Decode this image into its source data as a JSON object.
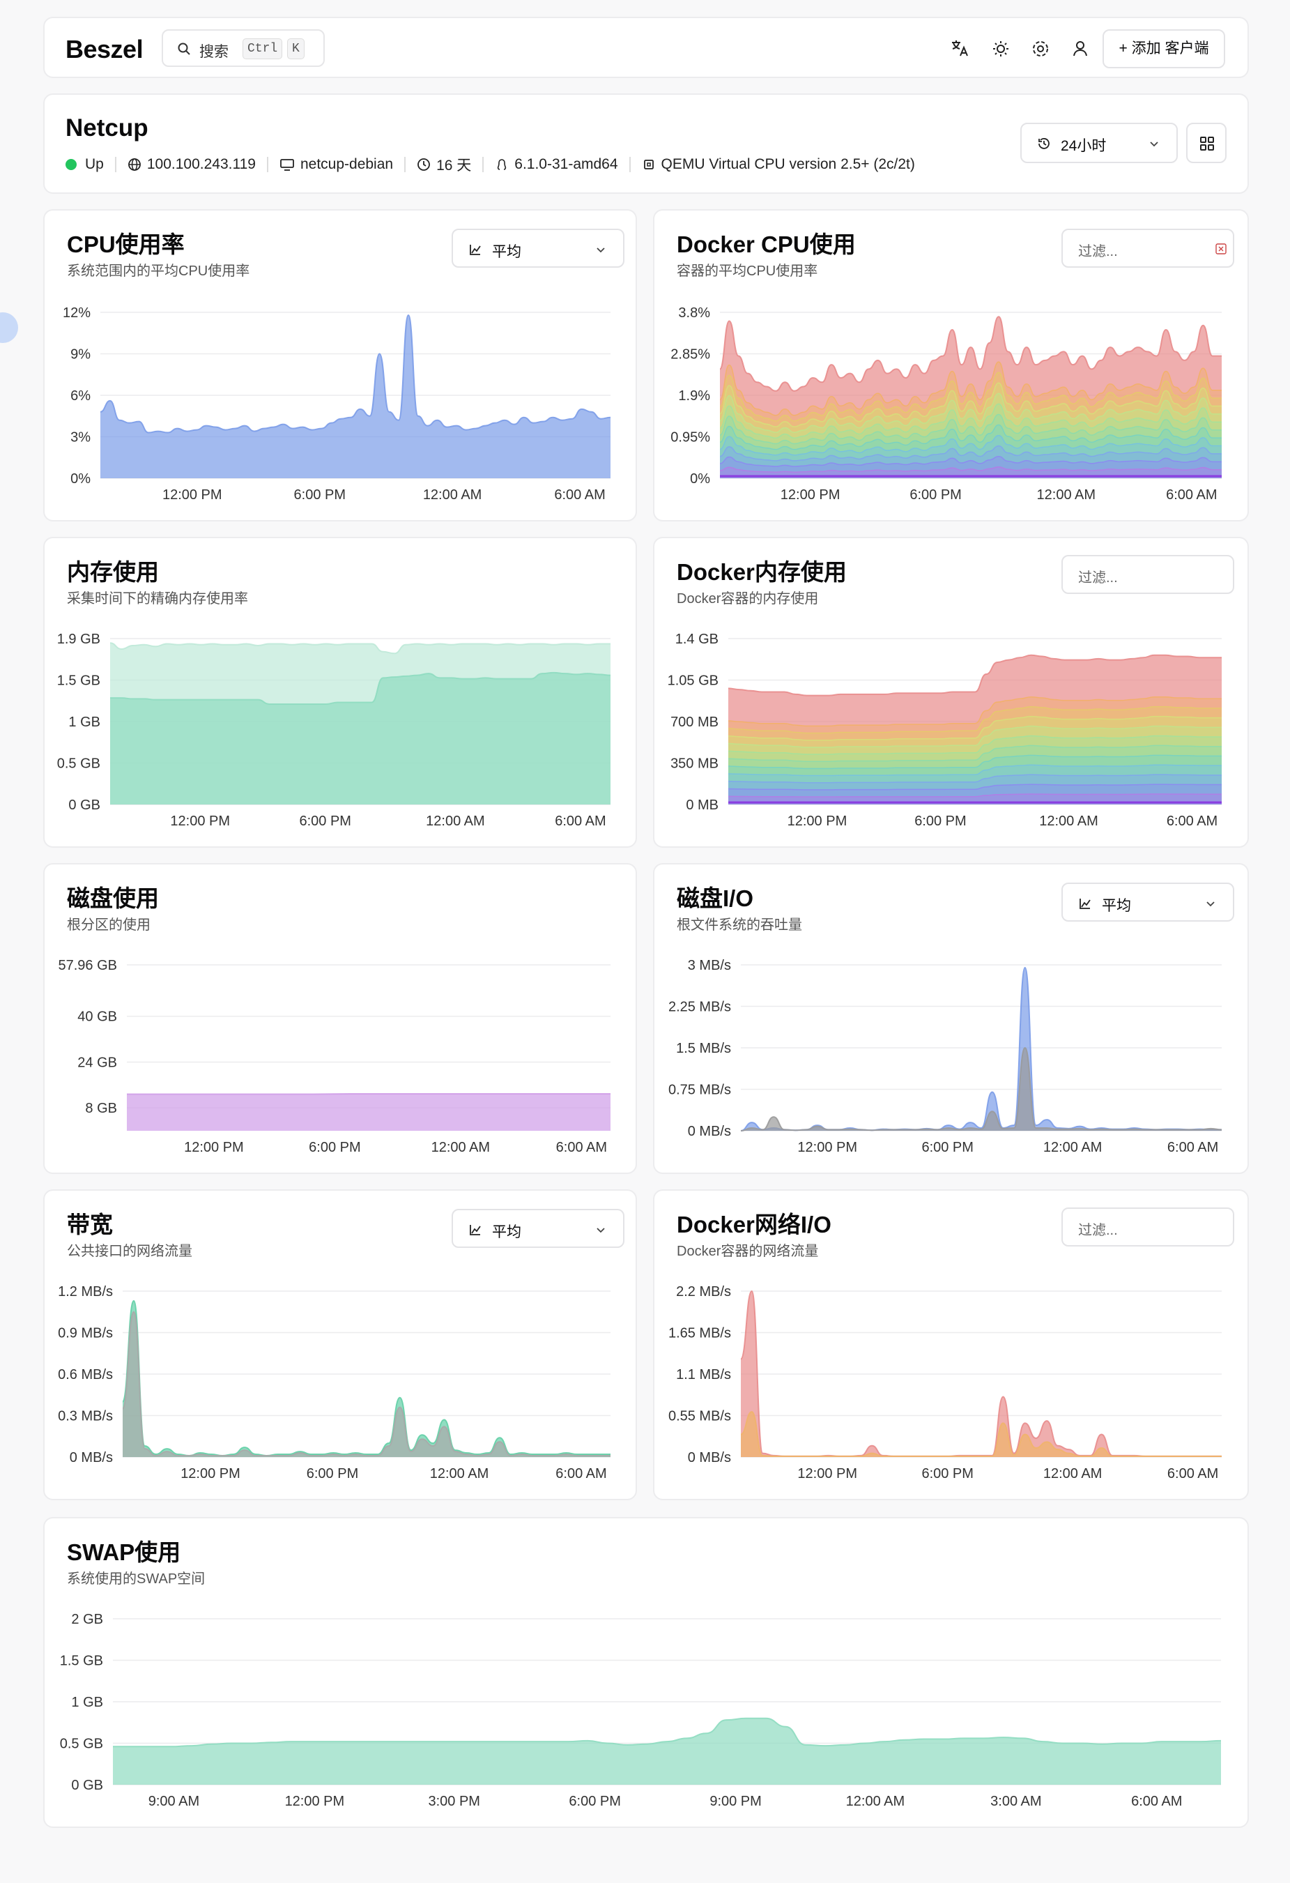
{
  "app": {
    "logo": "Beszel",
    "search_label": "搜索",
    "kbd1": "Ctrl",
    "kbd2": "K",
    "add_label": "+ 添加 客户端"
  },
  "system": {
    "name": "Netcup",
    "status": "Up",
    "ip": "100.100.243.119",
    "hostname": "netcup-debian",
    "uptime": "16 天",
    "kernel": "6.1.0-31-amd64",
    "cpu": "QEMU Virtual CPU version 2.5+ (2c/2t)",
    "range_label": "24小时"
  },
  "charts": {
    "cpu": {
      "title": "CPU使用率",
      "subtitle": "系统范围内的平均CPU使用率",
      "select": "平均"
    },
    "docker_cpu": {
      "title": "Docker CPU使用",
      "subtitle": "容器的平均CPU使用率",
      "filter": "过滤..."
    },
    "mem": {
      "title": "内存使用",
      "subtitle": "采集时间下的精确内存使用率"
    },
    "docker_mem": {
      "title": "Docker内存使用",
      "subtitle": "Docker容器的内存使用",
      "filter": "过滤..."
    },
    "disk": {
      "title": "磁盘使用",
      "subtitle": "根分区的使用"
    },
    "disk_io": {
      "title": "磁盘I/O",
      "subtitle": "根文件系统的吞吐量",
      "select": "平均"
    },
    "bandwidth": {
      "title": "带宽",
      "subtitle": "公共接口的网络流量",
      "select": "平均"
    },
    "docker_net": {
      "title": "Docker网络I/O",
      "subtitle": "Docker容器的网络流量",
      "filter": "过滤..."
    },
    "swap": {
      "title": "SWAP使用",
      "subtitle": "系统使用的SWAP空间"
    }
  },
  "chart_data": [
    {
      "id": "cpu",
      "type": "area",
      "title": "CPU使用率",
      "y_ticks": [
        "0%",
        "3%",
        "6%",
        "9%",
        "12%"
      ],
      "ylim": [
        0,
        12
      ],
      "x_ticks": [
        "12:00 PM",
        "6:00 PM",
        "12:00 AM",
        "6:00 AM"
      ],
      "x_tick_positions": [
        0.18,
        0.43,
        0.69,
        0.94
      ],
      "series": [
        {
          "values": [
            4.8,
            5.6,
            4.2,
            4.0,
            4.1,
            3.3,
            3.4,
            3.3,
            3.6,
            3.4,
            3.5,
            3.8,
            3.7,
            3.5,
            3.6,
            3.8,
            3.4,
            3.6,
            3.7,
            3.9,
            3.6,
            3.7,
            3.5,
            3.6,
            4.0,
            4.3,
            4.4,
            5.0,
            4.5,
            9.0,
            4.8,
            4.2,
            11.8,
            4.5,
            3.8,
            4.2,
            3.7,
            3.8,
            3.5,
            3.6,
            3.8,
            4.0,
            4.2,
            3.9,
            4.4,
            4.0,
            4.1,
            4.4,
            4.2,
            4.3,
            5.0,
            4.8,
            4.3,
            4.4
          ]
        }
      ],
      "colors": [
        "#7b9ce8"
      ]
    },
    {
      "id": "docker_cpu",
      "type": "area",
      "title": "Docker CPU使用",
      "y_ticks": [
        "0%",
        "0.95%",
        "1.9%",
        "2.85%",
        "3.8%"
      ],
      "ylim": [
        0,
        3.8
      ],
      "x_ticks": [
        "12:00 PM",
        "6:00 PM",
        "12:00 AM",
        "6:00 AM"
      ],
      "x_tick_positions": [
        0.18,
        0.43,
        0.69,
        0.94
      ],
      "series": [
        {
          "values": [
            2.5,
            3.6,
            2.8,
            2.4,
            2.2,
            2.1,
            2.0,
            2.2,
            2.0,
            2.1,
            2.3,
            2.2,
            2.6,
            2.3,
            2.4,
            2.2,
            2.5,
            2.7,
            2.4,
            2.5,
            2.3,
            2.6,
            2.4,
            2.7,
            2.8,
            3.4,
            2.6,
            3.0,
            2.5,
            3.1,
            3.7,
            2.9,
            2.6,
            3.0,
            2.6,
            2.7,
            2.8,
            2.9,
            2.6,
            2.8,
            2.5,
            2.7,
            3.0,
            2.8,
            2.9,
            3.0,
            2.9,
            2.8,
            3.4,
            2.9,
            2.7,
            2.9,
            3.5,
            2.8,
            2.8
          ]
        }
      ],
      "colors": [
        "#e88c8c"
      ]
    },
    {
      "id": "mem",
      "type": "area",
      "title": "内存使用",
      "y_ticks": [
        "0 GB",
        "0.5 GB",
        "1 GB",
        "1.5 GB",
        "1.9 GB"
      ],
      "ylim": [
        0,
        1.9
      ],
      "x_ticks": [
        "12:00 PM",
        "6:00 PM",
        "12:00 AM",
        "6:00 AM"
      ],
      "x_tick_positions": [
        0.18,
        0.43,
        0.69,
        0.94
      ],
      "series": [
        {
          "values": [
            1.85,
            1.78,
            1.82,
            1.83,
            1.81,
            1.84,
            1.83,
            1.84,
            1.83,
            1.84,
            1.83,
            1.83,
            1.84,
            1.82,
            1.84,
            1.84,
            1.83,
            1.84,
            1.83,
            1.84,
            1.83,
            1.84,
            1.84,
            1.84,
            1.75,
            1.73,
            1.83,
            1.84,
            1.83,
            1.84,
            1.83,
            1.84,
            1.84,
            1.84,
            1.83,
            1.84,
            1.83,
            1.84,
            1.84,
            1.83,
            1.84,
            1.84,
            1.83,
            1.84,
            1.84
          ]
        },
        {
          "values": [
            1.22,
            1.22,
            1.21,
            1.21,
            1.2,
            1.2,
            1.2,
            1.2,
            1.2,
            1.2,
            1.2,
            1.2,
            1.2,
            1.2,
            1.15,
            1.15,
            1.15,
            1.15,
            1.15,
            1.15,
            1.17,
            1.17,
            1.17,
            1.17,
            1.45,
            1.46,
            1.47,
            1.48,
            1.5,
            1.45,
            1.45,
            1.44,
            1.44,
            1.45,
            1.44,
            1.44,
            1.44,
            1.44,
            1.5,
            1.51,
            1.5,
            1.49,
            1.5,
            1.49,
            1.48
          ]
        }
      ],
      "colors": [
        "#bfe9d8",
        "#8edcc0"
      ]
    },
    {
      "id": "docker_mem",
      "type": "area",
      "title": "Docker内存使用",
      "y_ticks": [
        "0 MB",
        "350 MB",
        "700 MB",
        "1.05 GB",
        "1.4 GB"
      ],
      "ylim": [
        0,
        1.4
      ],
      "x_ticks": [
        "12:00 PM",
        "6:00 PM",
        "12:00 AM",
        "6:00 AM"
      ],
      "x_tick_positions": [
        0.18,
        0.43,
        0.69,
        0.94
      ],
      "series": [
        {
          "values": [
            0.98,
            0.97,
            0.96,
            0.95,
            0.95,
            0.95,
            0.93,
            0.92,
            0.92,
            0.92,
            0.93,
            0.93,
            0.93,
            0.93,
            0.93,
            0.94,
            0.94,
            0.94,
            0.94,
            0.94,
            0.95,
            0.95,
            0.95,
            1.1,
            1.2,
            1.22,
            1.24,
            1.26,
            1.25,
            1.23,
            1.22,
            1.22,
            1.22,
            1.23,
            1.22,
            1.22,
            1.23,
            1.24,
            1.26,
            1.26,
            1.25,
            1.25,
            1.24,
            1.24,
            1.24
          ]
        }
      ],
      "colors": [
        "#e88c8c"
      ]
    },
    {
      "id": "disk",
      "type": "area",
      "title": "磁盘使用",
      "y_ticks": [
        "8 GB",
        "24 GB",
        "40 GB",
        "57.96 GB"
      ],
      "ylim": [
        0,
        57.96
      ],
      "x_ticks": [
        "12:00 PM",
        "6:00 PM",
        "12:00 AM",
        "6:00 AM"
      ],
      "x_tick_positions": [
        0.18,
        0.43,
        0.69,
        0.94
      ],
      "series": [
        {
          "values": [
            12.8,
            12.8,
            12.8,
            12.8,
            12.8,
            12.8,
            12.9,
            12.9,
            12.9,
            12.9,
            12.9,
            12.9,
            12.9,
            12.9
          ]
        }
      ],
      "colors": [
        "#cf9de8"
      ]
    },
    {
      "id": "disk_io",
      "type": "area",
      "title": "磁盘I/O",
      "y_ticks": [
        "0 MB/s",
        "0.75 MB/s",
        "1.5 MB/s",
        "2.25 MB/s",
        "3 MB/s"
      ],
      "ylim": [
        0,
        3
      ],
      "x_ticks": [
        "12:00 PM",
        "6:00 PM",
        "12:00 AM",
        "6:00 AM"
      ],
      "x_tick_positions": [
        0.18,
        0.43,
        0.69,
        0.94
      ],
      "series": [
        {
          "values": [
            0,
            0.15,
            0.02,
            0.05,
            0.02,
            0.01,
            0.02,
            0.1,
            0.02,
            0.02,
            0.05,
            0.02,
            0.01,
            0.03,
            0.02,
            0.03,
            0.02,
            0.04,
            0.02,
            0.1,
            0.03,
            0.15,
            0.05,
            0.7,
            0.05,
            0.1,
            2.95,
            0.1,
            0.2,
            0.05,
            0.04,
            0.08,
            0.03,
            0.05,
            0.03,
            0.03,
            0.05,
            0.03,
            0.02,
            0.03,
            0.03,
            0.02,
            0.03,
            0.02,
            0.02
          ]
        },
        {
          "values": [
            0,
            0.05,
            0.02,
            0.25,
            0.02,
            0.01,
            0.02,
            0.08,
            0.02,
            0.02,
            0.03,
            0.02,
            0.01,
            0.02,
            0.02,
            0.02,
            0.02,
            0.03,
            0.02,
            0.05,
            0.02,
            0.05,
            0.03,
            0.35,
            0.04,
            0.05,
            1.5,
            0.05,
            0.05,
            0.03,
            0.03,
            0.04,
            0.02,
            0.03,
            0.02,
            0.02,
            0.03,
            0.02,
            0.02,
            0.02,
            0.02,
            0.02,
            0.02,
            0.04,
            0.02
          ]
        }
      ],
      "colors": [
        "#7b9ce8",
        "#9a9a9a"
      ]
    },
    {
      "id": "bandwidth",
      "type": "area",
      "title": "带宽",
      "y_ticks": [
        "0 MB/s",
        "0.3 MB/s",
        "0.6 MB/s",
        "0.9 MB/s",
        "1.2 MB/s"
      ],
      "ylim": [
        0,
        1.2
      ],
      "x_ticks": [
        "12:00 PM",
        "6:00 PM",
        "12:00 AM",
        "6:00 AM"
      ],
      "x_tick_positions": [
        0.18,
        0.43,
        0.69,
        0.94
      ],
      "series": [
        {
          "values": [
            0.4,
            1.13,
            0.08,
            0.02,
            0.06,
            0.02,
            0.01,
            0.03,
            0.02,
            0.01,
            0.02,
            0.07,
            0.02,
            0.01,
            0.02,
            0.02,
            0.04,
            0.02,
            0.02,
            0.03,
            0.02,
            0.03,
            0.02,
            0.02,
            0.1,
            0.43,
            0.05,
            0.16,
            0.1,
            0.27,
            0.05,
            0.03,
            0.02,
            0.03,
            0.14,
            0.02,
            0.03,
            0.02,
            0.02,
            0.02,
            0.03,
            0.02,
            0.02,
            0.02,
            0.02
          ]
        },
        {
          "values": [
            0.35,
            1.05,
            0.06,
            0.01,
            0.04,
            0.01,
            0.01,
            0.02,
            0.01,
            0.01,
            0.01,
            0.05,
            0.01,
            0.01,
            0.01,
            0.01,
            0.03,
            0.01,
            0.01,
            0.02,
            0.01,
            0.02,
            0.01,
            0.01,
            0.08,
            0.36,
            0.04,
            0.13,
            0.08,
            0.22,
            0.04,
            0.02,
            0.01,
            0.02,
            0.11,
            0.01,
            0.02,
            0.01,
            0.01,
            0.01,
            0.02,
            0.01,
            0.01,
            0.01,
            0.01
          ]
        }
      ],
      "colors": [
        "#63cfa6",
        "#a9a9a9"
      ]
    },
    {
      "id": "docker_net",
      "type": "area",
      "title": "Docker网络I/O",
      "y_ticks": [
        "0 MB/s",
        "0.55 MB/s",
        "1.1 MB/s",
        "1.65 MB/s",
        "2.2 MB/s"
      ],
      "ylim": [
        0,
        2.2
      ],
      "x_ticks": [
        "12:00 PM",
        "6:00 PM",
        "12:00 AM",
        "6:00 AM"
      ],
      "x_tick_positions": [
        0.18,
        0.43,
        0.69,
        0.94
      ],
      "series": [
        {
          "values": [
            1.3,
            2.2,
            0.05,
            0.02,
            0.01,
            0.01,
            0.01,
            0.01,
            0.02,
            0.01,
            0.01,
            0.02,
            0.15,
            0.02,
            0.01,
            0.01,
            0.01,
            0.01,
            0.01,
            0.01,
            0.02,
            0.02,
            0.02,
            0.02,
            0.8,
            0.05,
            0.45,
            0.25,
            0.48,
            0.15,
            0.1,
            0.02,
            0.02,
            0.3,
            0.02,
            0.02,
            0.02,
            0.01,
            0.01,
            0.01,
            0.01,
            0.01,
            0.01,
            0.01,
            0.01
          ]
        },
        {
          "values": [
            0.3,
            0.6,
            0.02,
            0.01,
            0.01,
            0.01,
            0.01,
            0.01,
            0.01,
            0.01,
            0.01,
            0.01,
            0.05,
            0.01,
            0.01,
            0.01,
            0.01,
            0.01,
            0.01,
            0.01,
            0.01,
            0.01,
            0.01,
            0.01,
            0.45,
            0.03,
            0.3,
            0.12,
            0.2,
            0.1,
            0.05,
            0.01,
            0.01,
            0.12,
            0.01,
            0.01,
            0.01,
            0.01,
            0.01,
            0.01,
            0.01,
            0.01,
            0.01,
            0.01,
            0.01
          ]
        }
      ],
      "colors": [
        "#e88c8c",
        "#f0b46a"
      ]
    },
    {
      "id": "swap",
      "type": "area",
      "title": "SWAP使用",
      "y_ticks": [
        "0 GB",
        "0.5 GB",
        "1 GB",
        "1.5 GB",
        "2 GB"
      ],
      "ylim": [
        0,
        2
      ],
      "x_ticks": [
        "9:00 AM",
        "12:00 PM",
        "3:00 PM",
        "6:00 PM",
        "9:00 PM",
        "12:00 AM",
        "3:00 AM",
        "6:00 AM"
      ],
      "x_tick_positions": [
        0.055,
        0.182,
        0.308,
        0.435,
        0.562,
        0.688,
        0.815,
        0.942
      ],
      "series": [
        {
          "values": [
            0.46,
            0.46,
            0.46,
            0.46,
            0.47,
            0.49,
            0.5,
            0.5,
            0.51,
            0.52,
            0.52,
            0.52,
            0.52,
            0.52,
            0.52,
            0.52,
            0.52,
            0.52,
            0.52,
            0.52,
            0.52,
            0.52,
            0.52,
            0.52,
            0.53,
            0.5,
            0.48,
            0.49,
            0.52,
            0.56,
            0.62,
            0.78,
            0.8,
            0.8,
            0.7,
            0.48,
            0.47,
            0.48,
            0.5,
            0.52,
            0.54,
            0.55,
            0.55,
            0.56,
            0.56,
            0.57,
            0.56,
            0.52,
            0.5,
            0.5,
            0.49,
            0.5,
            0.5,
            0.52,
            0.52,
            0.52,
            0.53
          ]
        }
      ],
      "colors": [
        "#8edcc0"
      ]
    }
  ]
}
